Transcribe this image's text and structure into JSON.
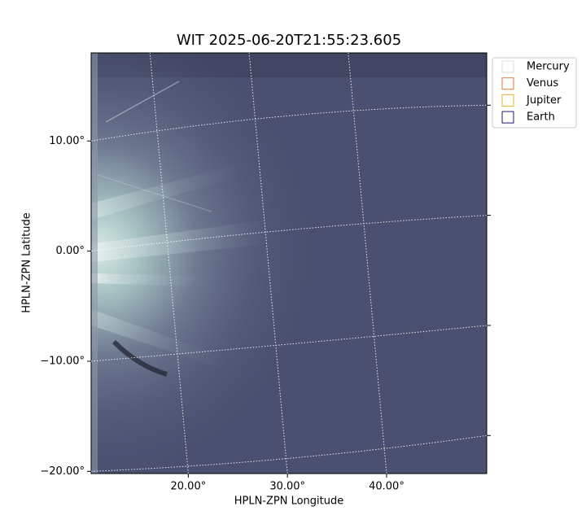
{
  "chart_data": {
    "type": "image",
    "title": "WIT 2025-06-20T21:55:23.605",
    "x_label": "HPLN-ZPN Longitude",
    "y_label": "HPLN-ZPN Latitude",
    "xlim": [
      10.2,
      50.1
    ],
    "ylim": [
      -20.2,
      18.0
    ],
    "xticks": [
      {
        "value": 20,
        "label": "20.00°"
      },
      {
        "value": 30,
        "label": "30.00°"
      },
      {
        "value": 40,
        "label": "40.00°"
      }
    ],
    "yticks": [
      {
        "value": -20,
        "label": "−20.00°"
      },
      {
        "value": -10,
        "label": "−10.00°"
      },
      {
        "value": 0,
        "label": "0.00°"
      },
      {
        "value": 10,
        "label": "10.00°"
      }
    ],
    "grid": true,
    "series": [
      {
        "name": "Mercury",
        "color": "#dddddd"
      },
      {
        "name": "Venus",
        "color": "#e07b39"
      },
      {
        "name": "Jupiter",
        "color": "#e8b22c"
      },
      {
        "name": "Earth",
        "color": "#1c1c78"
      }
    ]
  }
}
